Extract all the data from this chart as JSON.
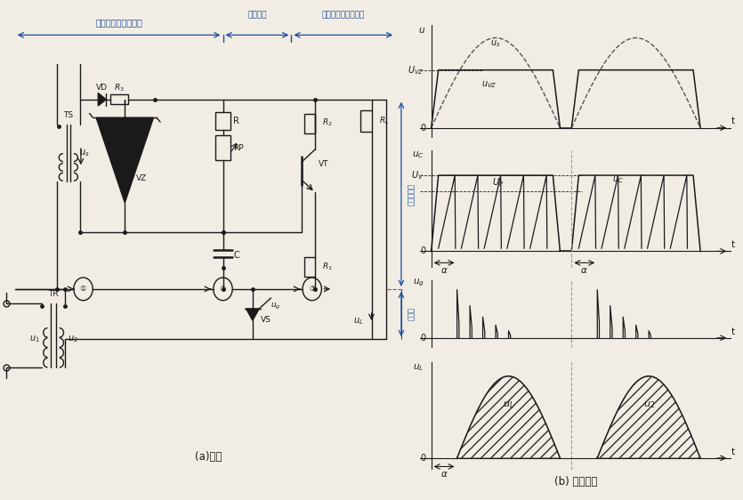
{
  "title_a": "(a)电路",
  "title_b": "(b) 工作波形",
  "label_s1": "梯形波同步电压形成",
  "label_s2": "阻容移相",
  "label_s3": "触发脉冲形成及输出",
  "label_cbyq": "触发变压器",
  "label_zdl": "主电路",
  "bg": "#f2ede4",
  "lc": "#1a1a1a",
  "bc": "#1a4fa0"
}
